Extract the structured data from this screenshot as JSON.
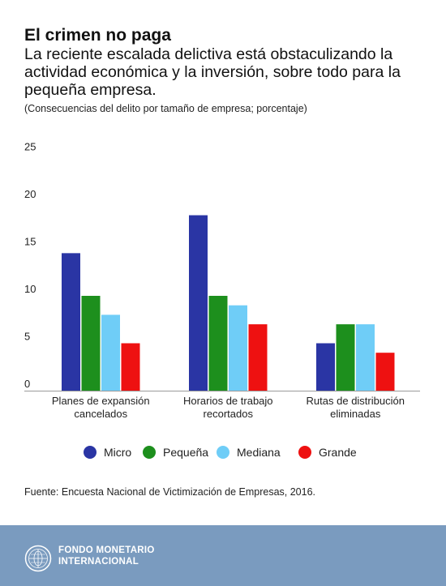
{
  "header": {
    "title": "El crimen no paga",
    "subtitle": "La reciente escalada delictiva está obstaculizando la actividad económica y la inversión, sobre todo para la pequeña empresa.",
    "note": "(Consecuencias del delito por tamaño de empresa; porcentaje)"
  },
  "chart_data": {
    "type": "bar",
    "title": "El crimen no paga",
    "categories": [
      [
        "Planes de expansión",
        "cancelados"
      ],
      [
        "Horarios de trabajo",
        "recortados"
      ],
      [
        "Rutas de distribución",
        "eliminadas"
      ]
    ],
    "series": [
      {
        "name": "Micro",
        "color": "#2a35a4",
        "values": [
          14.5,
          18.5,
          5.0
        ]
      },
      {
        "name": "Pequeña",
        "color": "#1d8f1d",
        "values": [
          10.0,
          10.0,
          7.0
        ]
      },
      {
        "name": "Mediana",
        "color": "#6fcdf7",
        "values": [
          8.0,
          9.0,
          7.0
        ]
      },
      {
        "name": "Grande",
        "color": "#ee1111",
        "values": [
          5.0,
          7.0,
          4.0
        ]
      }
    ],
    "ylim": [
      0,
      25
    ],
    "yticks": [
      0,
      5,
      10,
      15,
      20,
      25
    ],
    "grid": false,
    "legend": "bottom"
  },
  "footer": {
    "source": "Fuente: Encuesta Nacional de Victimización de Empresas, 2016.",
    "org_line1": "FONDO MONETARIO",
    "org_line2": "INTERNACIONAL"
  }
}
